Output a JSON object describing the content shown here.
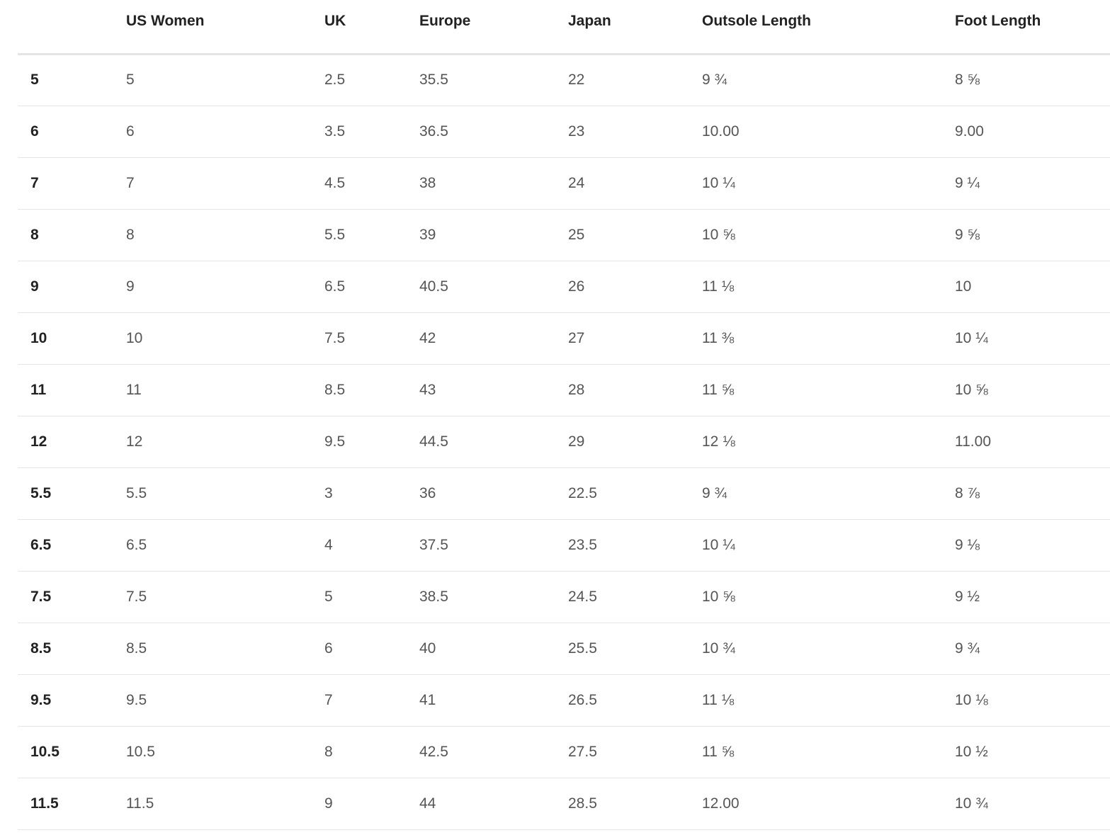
{
  "table": {
    "headers": [
      "",
      "US Women",
      "UK",
      "Europe",
      "Japan",
      "Outsole Length",
      "Foot Length"
    ],
    "rows": [
      [
        "5",
        "5",
        "2.5",
        "35.5",
        "22",
        "9 ¾",
        "8 ⅝"
      ],
      [
        "6",
        "6",
        "3.5",
        "36.5",
        "23",
        "10.00",
        "9.00"
      ],
      [
        "7",
        "7",
        "4.5",
        "38",
        "24",
        "10 ¼",
        "9 ¼"
      ],
      [
        "8",
        "8",
        "5.5",
        "39",
        "25",
        "10 ⅝",
        "9 ⅝"
      ],
      [
        "9",
        "9",
        "6.5",
        "40.5",
        "26",
        "11 ⅛",
        "10"
      ],
      [
        "10",
        "10",
        "7.5",
        "42",
        "27",
        "11 ⅜",
        "10 ¼"
      ],
      [
        "11",
        "11",
        "8.5",
        "43",
        "28",
        "11 ⅝",
        "10 ⅝"
      ],
      [
        "12",
        "12",
        "9.5",
        "44.5",
        "29",
        "12 ⅛",
        "11.00"
      ],
      [
        "5.5",
        "5.5",
        "3",
        "36",
        "22.5",
        "9 ¾",
        "8 ⅞"
      ],
      [
        "6.5",
        "6.5",
        "4",
        "37.5",
        "23.5",
        "10 ¼",
        "9 ⅛"
      ],
      [
        "7.5",
        "7.5",
        "5",
        "38.5",
        "24.5",
        "10 ⅝",
        "9 ½"
      ],
      [
        "8.5",
        "8.5",
        "6",
        "40",
        "25.5",
        "10 ¾",
        "9 ¾"
      ],
      [
        "9.5",
        "9.5",
        "7",
        "41",
        "26.5",
        "11 ⅛",
        "10 ⅛"
      ],
      [
        "10.5",
        "10.5",
        "8",
        "42.5",
        "27.5",
        "11 ⅝",
        "10 ½"
      ],
      [
        "11.5",
        "11.5",
        "9",
        "44",
        "28.5",
        "12.00",
        "10 ¾"
      ]
    ]
  }
}
